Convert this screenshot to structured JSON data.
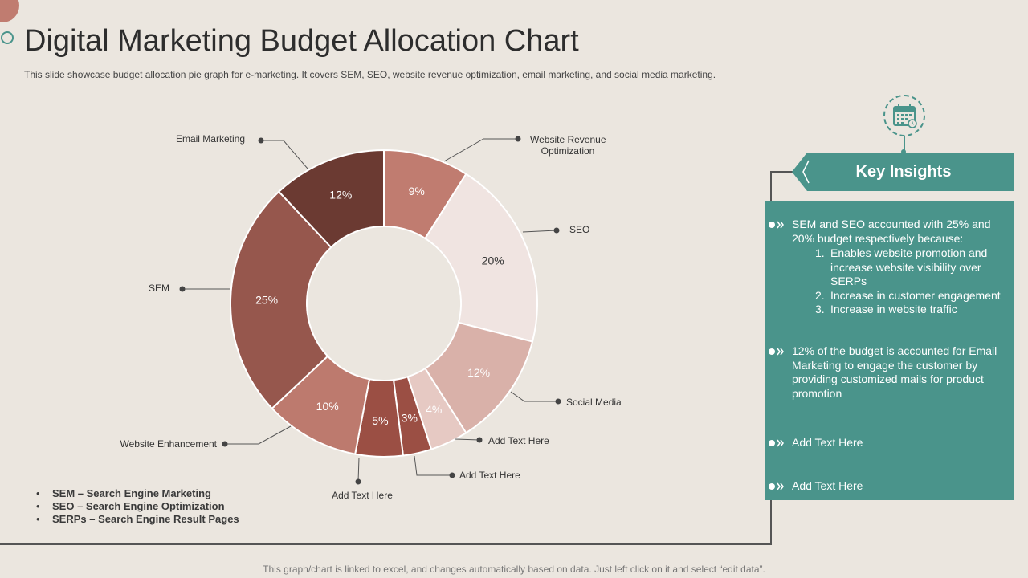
{
  "title": "Digital Marketing Budget Allocation Chart",
  "subtitle": "This slide showcase budget allocation pie graph for e-marketing. It covers SEM,  SEO,  website revenue optimization, email marketing, and social media marketing.",
  "footer": "This graph/chart is linked to excel,  and changes automatically based on data. Just left click on it and select “edit data”.",
  "abbreviations": [
    "SEM – Search Engine Marketing",
    "SEO – Search Engine Optimization",
    "SERPs – Search Engine Result Pages"
  ],
  "key_insights": {
    "title": "Key Insights",
    "icon": "calendar-icon",
    "items": [
      {
        "text": "SEM and SEO accounted with 25% and 20% budget respectively because:",
        "sub": [
          {
            "num": "1.",
            "text": "Enables website promotion and increase website visibility over SERPs"
          },
          {
            "num": "2.",
            "text": "Increase in customer engagement"
          },
          {
            "num": "3.",
            "text": "Increase in website traffic"
          }
        ]
      },
      {
        "text": "12% of the budget is accounted for Email Marketing to engage the customer by providing customized mails for product promotion"
      },
      {
        "text": "Add Text Here"
      },
      {
        "text": "Add Text Here"
      }
    ]
  },
  "chart_data": {
    "type": "pie",
    "donut": true,
    "title": "",
    "slices": [
      {
        "name": "Website Revenue Optimization",
        "value": 9,
        "label": "9%",
        "color": "#c07c70",
        "text_color": "#ffffff"
      },
      {
        "name": "SEO",
        "value": 20,
        "label": "20%",
        "color": "#f0e4e1",
        "text_color": "#333333"
      },
      {
        "name": "Social Media",
        "value": 12,
        "label": "12%",
        "color": "#d9b1a9",
        "text_color": "#ffffff"
      },
      {
        "name": "Add Text Here",
        "value": 4,
        "label": "4%",
        "color": "#e6c9c3",
        "text_color": "#ffffff"
      },
      {
        "name": "Add Text Here",
        "value": 3,
        "label": "3%",
        "color": "#9b4f44",
        "text_color": "#ffffff"
      },
      {
        "name": "Add Text Here",
        "value": 5,
        "label": "5%",
        "color": "#9b4f44",
        "text_color": "#ffffff"
      },
      {
        "name": "Website Enhancement",
        "value": 10,
        "label": "10%",
        "color": "#bd7a6e",
        "text_color": "#ffffff"
      },
      {
        "name": "SEM",
        "value": 25,
        "label": "25%",
        "color": "#96574d",
        "text_color": "#ffffff"
      },
      {
        "name": "Email Marketing",
        "value": 12,
        "label": "12%",
        "color": "#6b3a32",
        "text_color": "#ffffff"
      }
    ]
  }
}
